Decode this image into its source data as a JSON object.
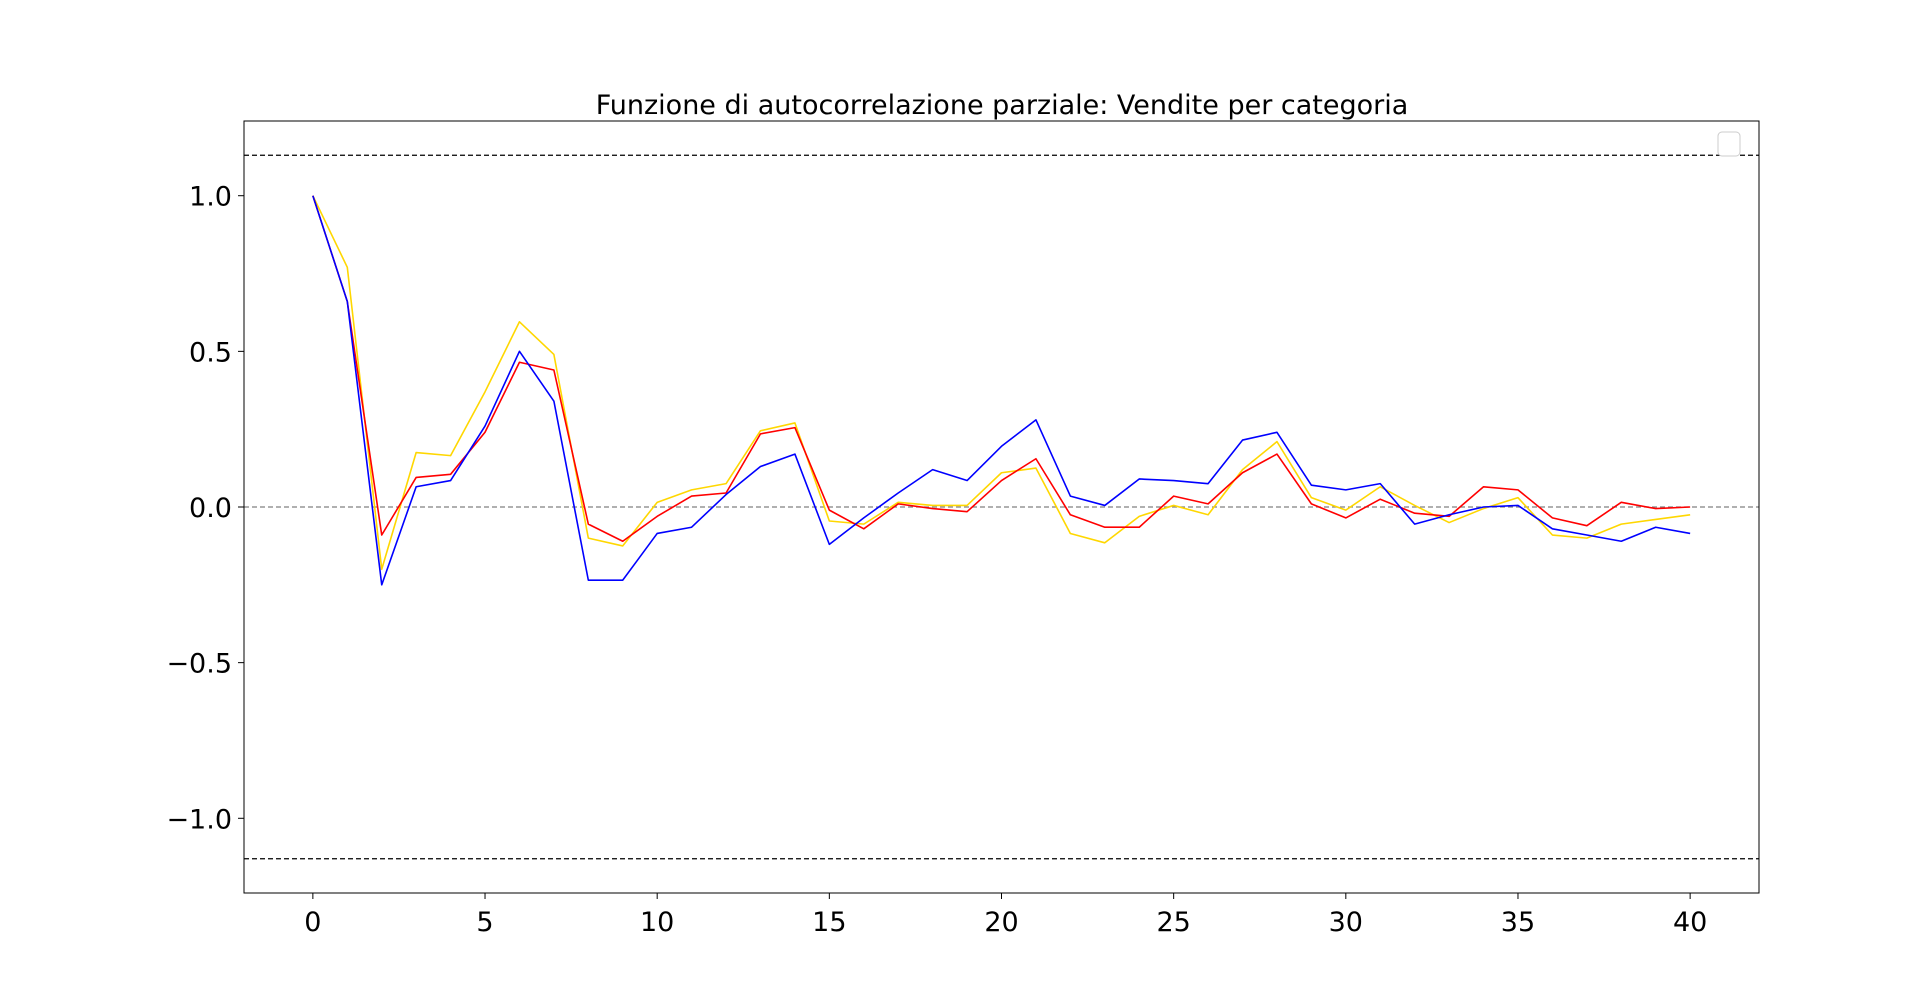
{
  "chart_data": {
    "type": "line",
    "title": "Funzione di autocorrelazione parziale: Vendite per categoria",
    "xlabel": "",
    "ylabel": "",
    "xlim": [
      -2,
      42
    ],
    "ylim": [
      -1.24,
      1.24
    ],
    "grid": false,
    "legend": {
      "placement": "upper right",
      "entries": []
    },
    "x_ticks": [
      0,
      5,
      10,
      15,
      20,
      25,
      30,
      35,
      40
    ],
    "x_tick_labels": [
      "0",
      "5",
      "10",
      "15",
      "20",
      "25",
      "30",
      "35",
      "40"
    ],
    "y_ticks": [
      1.0,
      0.5,
      0.0,
      -0.5,
      -1.0
    ],
    "y_tick_labels": [
      "1.0",
      "0.5",
      "0.0",
      "−0.5",
      "−1.0"
    ],
    "reference_lines": [
      {
        "y": 1.13,
        "color": "#000000",
        "style": "dashed"
      },
      {
        "y": 0.0,
        "color": "#808080",
        "style": "dashed"
      },
      {
        "y": -1.13,
        "color": "#000000",
        "style": "dashed"
      }
    ],
    "x": [
      0,
      1,
      2,
      3,
      4,
      5,
      6,
      7,
      8,
      9,
      10,
      11,
      12,
      13,
      14,
      15,
      16,
      17,
      18,
      19,
      20,
      21,
      22,
      23,
      24,
      25,
      26,
      27,
      28,
      29,
      30,
      31,
      32,
      33,
      34,
      35,
      36,
      37,
      38,
      39,
      40
    ],
    "series": [
      {
        "color": "#ffd700",
        "values": [
          1.0,
          0.77,
          -0.2,
          0.175,
          0.165,
          0.37,
          0.595,
          0.49,
          -0.1,
          -0.125,
          0.015,
          0.055,
          0.075,
          0.245,
          0.27,
          -0.045,
          -0.055,
          0.015,
          0.005,
          0.005,
          0.11,
          0.125,
          -0.085,
          -0.115,
          -0.03,
          0.005,
          -0.025,
          0.12,
          0.21,
          0.03,
          -0.01,
          0.065,
          0.005,
          -0.05,
          -0.005,
          0.03,
          -0.09,
          -0.1,
          -0.055,
          -0.04,
          -0.025
        ]
      },
      {
        "color": "#ff0000",
        "values": [
          1.0,
          0.66,
          -0.09,
          0.095,
          0.105,
          0.24,
          0.465,
          0.44,
          -0.055,
          -0.11,
          -0.03,
          0.035,
          0.045,
          0.235,
          0.255,
          -0.01,
          -0.07,
          0.01,
          -0.005,
          -0.015,
          0.085,
          0.155,
          -0.025,
          -0.065,
          -0.065,
          0.035,
          0.01,
          0.11,
          0.17,
          0.01,
          -0.035,
          0.025,
          -0.02,
          -0.03,
          0.065,
          0.055,
          -0.035,
          -0.06,
          0.015,
          -0.005,
          0.0
        ]
      },
      {
        "color": "#0000ff",
        "values": [
          1.0,
          0.66,
          -0.25,
          0.065,
          0.085,
          0.26,
          0.5,
          0.34,
          -0.235,
          -0.235,
          -0.085,
          -0.065,
          0.04,
          0.13,
          0.17,
          -0.12,
          -0.035,
          0.045,
          0.12,
          0.085,
          0.195,
          0.28,
          0.035,
          0.005,
          0.09,
          0.085,
          0.075,
          0.215,
          0.24,
          0.07,
          0.055,
          0.075,
          -0.055,
          -0.025,
          0.0,
          0.005,
          -0.07,
          -0.09,
          -0.11,
          -0.065,
          -0.085
        ]
      }
    ]
  }
}
